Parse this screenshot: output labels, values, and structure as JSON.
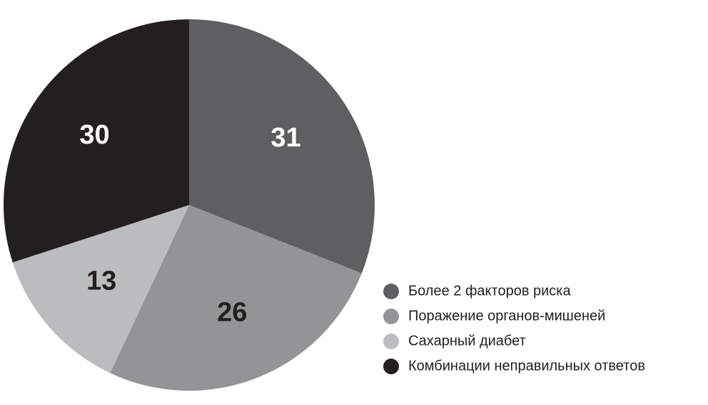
{
  "chart_data": {
    "type": "pie",
    "categories": [
      "Более 2 факторов риска",
      "Поражение органов-мишеней",
      "Сахарный диабет",
      "Комбинации неправильных ответов"
    ],
    "values": [
      31,
      26,
      13,
      30
    ],
    "colors": [
      "#5f5f61",
      "#939496",
      "#bbbcbe",
      "#231f20"
    ]
  }
}
